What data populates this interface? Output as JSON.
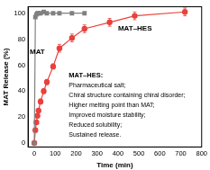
{
  "chart_data": {
    "type": "line",
    "x_label": "Time (min)",
    "y_label": "MAT Release (%)",
    "xlim": [
      -30,
      800
    ],
    "ylim": [
      -3,
      105
    ],
    "xticks": [
      0,
      100,
      200,
      300,
      400,
      500,
      600,
      700,
      800
    ],
    "yticks": [
      0,
      20,
      40,
      60,
      80,
      100
    ],
    "grid": false,
    "series": [
      {
        "name": "MAT",
        "color": "#808080",
        "marker": "square",
        "line_style": "solid",
        "x": [
          0,
          5,
          10,
          15,
          20,
          30,
          45,
          60,
          90,
          120,
          180,
          240
        ],
        "values": [
          0,
          97,
          99,
          100,
          100,
          100,
          101,
          100,
          100,
          100,
          100,
          100
        ]
      },
      {
        "name": "MAT–HES",
        "color": "#e8413c",
        "marker": "circle",
        "line_style": "solid",
        "x": [
          0,
          5,
          10,
          15,
          20,
          30,
          45,
          60,
          90,
          120,
          180,
          240,
          360,
          480,
          720
        ],
        "values": [
          0,
          10,
          16,
          21,
          25,
          32,
          40,
          47,
          59,
          73,
          81,
          88,
          93,
          98,
          101
        ],
        "errors": [
          0,
          1,
          1,
          1,
          1,
          2,
          2,
          2,
          2,
          3,
          3,
          3,
          3,
          3,
          3
        ]
      }
    ],
    "text_box": {
      "title": "MAT–HES:",
      "lines": [
        "Pharmaceutical salt;",
        "Chiral structure containing chiral disorder;",
        "Higher melting point than MAT;",
        "Improved moisture stability;",
        "Reduced solubility;",
        "Sustained release."
      ]
    }
  }
}
